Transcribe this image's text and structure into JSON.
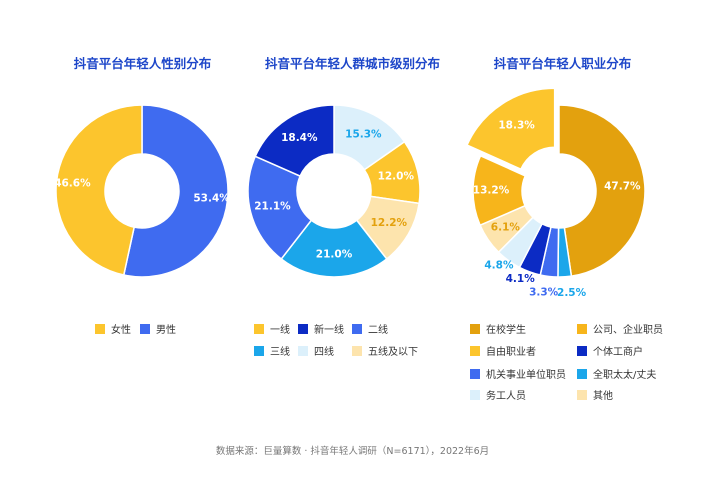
{
  "chart_data": [
    {
      "type": "pie",
      "title": "抖音平台年轻人性别分布",
      "slices": [
        {
          "name": "男性",
          "value": 53.4,
          "label": "53.4%",
          "color": "#3f6bf0"
        },
        {
          "name": "女性",
          "value": 46.6,
          "label": "46.6%",
          "color": "#fcc52d"
        }
      ],
      "legend": [
        {
          "name": "女性",
          "color": "#fcc52d"
        },
        {
          "name": "男性",
          "color": "#3f6bf0"
        }
      ]
    },
    {
      "type": "pie",
      "title": "抖音平台年轻人群城市级别分布",
      "slices": [
        {
          "name": "四线",
          "value": 15.3,
          "label": "15.3%",
          "color": "#dcf0fb"
        },
        {
          "name": "一线",
          "value": 12.0,
          "label": "12.0%",
          "color": "#fcc52d"
        },
        {
          "name": "五线及以下",
          "value": 12.2,
          "label": "12.2%",
          "color": "#fde4ad"
        },
        {
          "name": "三线",
          "value": 21.0,
          "label": "21.0%",
          "color": "#1ba6ea"
        },
        {
          "name": "二线",
          "value": 21.1,
          "label": "21.1%",
          "color": "#3f6bf0"
        },
        {
          "name": "新一线",
          "value": 18.4,
          "label": "18.4%",
          "color": "#0c2bc4"
        }
      ],
      "legend": [
        {
          "name": "一线",
          "color": "#fcc52d"
        },
        {
          "name": "新一线",
          "color": "#0c2bc4"
        },
        {
          "name": "二线",
          "color": "#3f6bf0"
        },
        {
          "name": "三线",
          "color": "#1ba6ea"
        },
        {
          "name": "四线",
          "color": "#dcf0fb"
        },
        {
          "name": "五线及以下",
          "color": "#fde4ad"
        }
      ]
    },
    {
      "type": "pie",
      "title": "抖音平台年轻人职业分布",
      "slices": [
        {
          "name": "在校学生",
          "value": 47.7,
          "label": "47.7%",
          "color": "#e3a10e"
        },
        {
          "name": "全职太太/丈夫",
          "value": 2.5,
          "label": "2.5%",
          "color": "#1ba6ea"
        },
        {
          "name": "机关事业单位职员",
          "value": 3.3,
          "label": "3.3%",
          "color": "#3f6bf0"
        },
        {
          "name": "个体工商户",
          "value": 4.1,
          "label": "4.1%",
          "color": "#0c2bc4"
        },
        {
          "name": "务工人员",
          "value": 4.8,
          "label": "4.8%",
          "color": "#dcf0fb"
        },
        {
          "name": "其他",
          "value": 6.1,
          "label": "6.1%",
          "color": "#fde4ad"
        },
        {
          "name": "公司、企业职员",
          "value": 13.2,
          "label": "13.2%",
          "color": "#f7b51b"
        },
        {
          "name": "自由职业者",
          "value": 18.3,
          "label": "18.3%",
          "color": "#fcc52d",
          "exploded": true
        }
      ],
      "legend": [
        {
          "name": "在校学生",
          "color": "#e3a10e"
        },
        {
          "name": "公司、企业职员",
          "color": "#f7b51b"
        },
        {
          "name": "自由职业者",
          "color": "#fcc52d"
        },
        {
          "name": "个体工商户",
          "color": "#0c2bc4"
        },
        {
          "name": "机关事业单位职员",
          "color": "#3f6bf0"
        },
        {
          "name": "全职太太/丈夫",
          "color": "#1ba6ea"
        },
        {
          "name": "务工人员",
          "color": "#dcf0fb"
        },
        {
          "name": "其他",
          "color": "#fde4ad"
        }
      ]
    }
  ],
  "footnote": "数据来源：巨量算数 · 抖音年轻人调研（N=6171），2022年6月"
}
